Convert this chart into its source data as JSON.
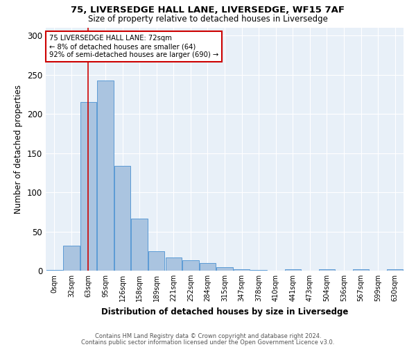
{
  "title1": "75, LIVERSEDGE HALL LANE, LIVERSEDGE, WF15 7AF",
  "title2": "Size of property relative to detached houses in Liversedge",
  "xlabel": "Distribution of detached houses by size in Liversedge",
  "ylabel": "Number of detached properties",
  "bar_labels": [
    "0sqm",
    "32sqm",
    "63sqm",
    "95sqm",
    "126sqm",
    "158sqm",
    "189sqm",
    "221sqm",
    "252sqm",
    "284sqm",
    "315sqm",
    "347sqm",
    "378sqm",
    "410sqm",
    "441sqm",
    "473sqm",
    "504sqm",
    "536sqm",
    "567sqm",
    "599sqm",
    "630sqm"
  ],
  "bar_values": [
    1,
    32,
    215,
    243,
    134,
    66,
    25,
    17,
    13,
    10,
    4,
    2,
    1,
    0,
    2,
    0,
    2,
    0,
    2,
    0,
    2
  ],
  "bar_color": "#aac4e0",
  "bar_edge_color": "#5b9bd5",
  "background_color": "#e8f0f8",
  "vline_x": 2,
  "vline_color": "#cc0000",
  "annotation_text": "75 LIVERSEDGE HALL LANE: 72sqm\n← 8% of detached houses are smaller (64)\n92% of semi-detached houses are larger (690) →",
  "annotation_box_color": "white",
  "annotation_box_edge_color": "#cc0000",
  "ylim": [
    0,
    310
  ],
  "yticks": [
    0,
    50,
    100,
    150,
    200,
    250,
    300
  ],
  "footnote1": "Contains HM Land Registry data © Crown copyright and database right 2024.",
  "footnote2": "Contains public sector information licensed under the Open Government Licence v3.0."
}
